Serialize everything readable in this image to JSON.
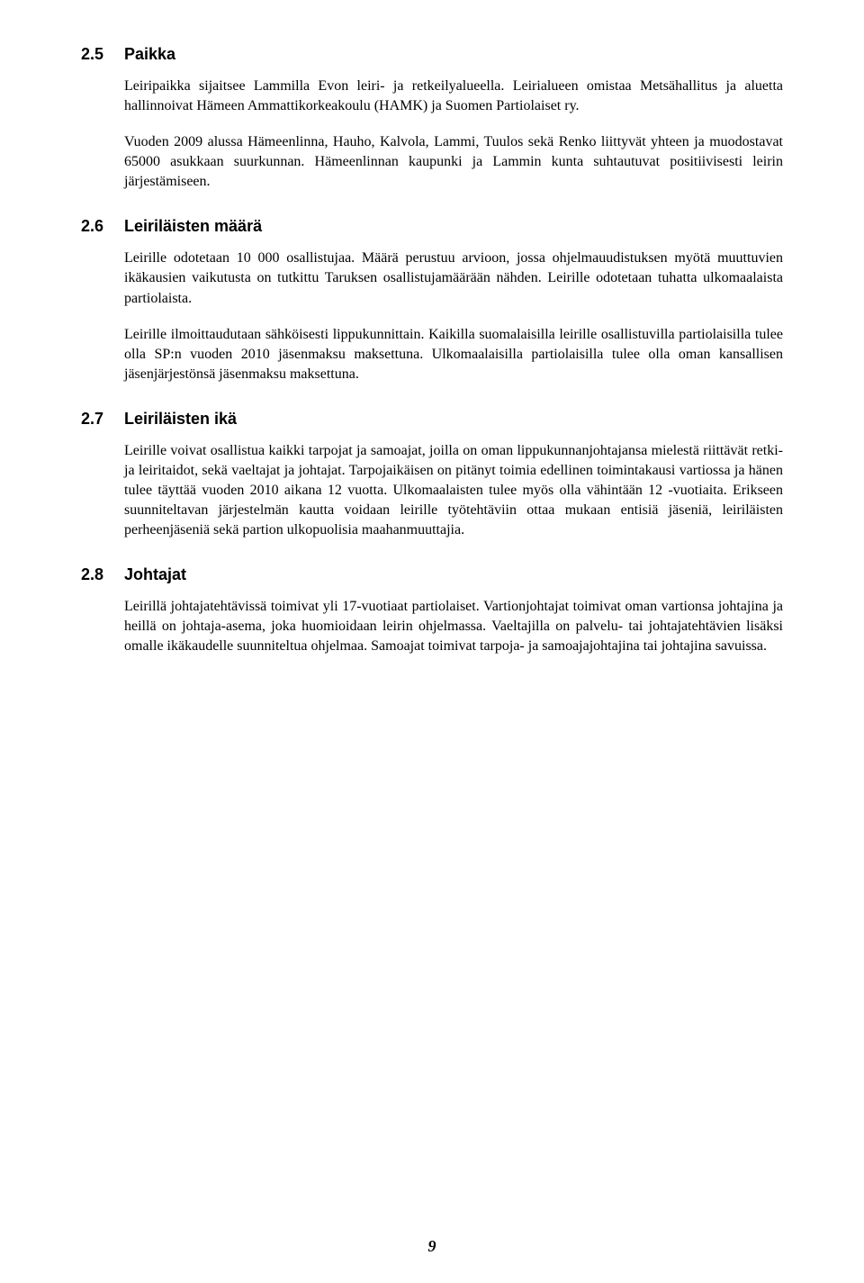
{
  "sections": [
    {
      "number": "2.5",
      "title": "Paikka",
      "paragraphs": [
        "Leiripaikka sijaitsee Lammilla Evon leiri- ja retkeilyalueella. Leirialueen omistaa Metsähallitus ja aluetta hallinnoivat Hämeen Ammattikorkeakoulu (HAMK) ja Suomen Partiolaiset ry.",
        "Vuoden 2009 alussa Hämeenlinna, Hauho, Kalvola, Lammi, Tuulos sekä Renko liittyvät yhteen ja muodostavat 65000 asukkaan suurkunnan. Hämeenlinnan kaupunki ja Lammin kunta suhtautuvat positiivisesti leirin järjestämiseen."
      ]
    },
    {
      "number": "2.6",
      "title": "Leiriläisten määrä",
      "paragraphs": [
        "Leirille odotetaan 10 000 osallistujaa. Määrä perustuu arvioon, jossa ohjelmauudistuksen myötä muuttuvien ikäkausien vaikutusta on tutkittu Taruksen osallistujamäärään nähden. Leirille odotetaan tuhatta ulkomaalaista partiolaista.",
        "Leirille ilmoittaudutaan sähköisesti lippukunnittain. Kaikilla suomalaisilla leirille osallistuvilla partiolaisilla tulee olla SP:n vuoden 2010 jäsenmaksu maksettuna. Ulkomaalaisilla partiolaisilla tulee olla oman kansallisen jäsenjärjestönsä jäsenmaksu maksettuna."
      ]
    },
    {
      "number": "2.7",
      "title": "Leiriläisten ikä",
      "paragraphs": [
        "Leirille voivat osallistua kaikki tarpojat ja samoajat, joilla on oman lippukunnanjohtajansa mielestä riittävät retki- ja leiritaidot, sekä vaeltajat ja johtajat. Tarpojaikäisen on pitänyt toimia edellinen toimintakausi vartiossa ja hänen tulee täyttää vuoden 2010 aikana 12 vuotta. Ulkomaalaisten tulee myös olla vähintään 12 -vuotiaita. Erikseen suunniteltavan järjestelmän kautta voidaan leirille työtehtäviin ottaa mukaan entisiä jäseniä, leiriläisten perheenjäseniä sekä partion ulkopuolisia maahanmuuttajia."
      ]
    },
    {
      "number": "2.8",
      "title": "Johtajat",
      "paragraphs": [
        "Leirillä johtajatehtävissä toimivat yli 17-vuotiaat partiolaiset. Vartionjohtajat toimivat oman vartionsa johtajina ja heillä on johtaja-asema, joka huomioidaan leirin ohjelmassa. Vaeltajilla on palvelu- tai johtajatehtävien lisäksi omalle ikäkaudelle suunniteltua ohjelmaa. Samoajat toimivat tarpoja- ja samoajajohtajina tai johtajina savuissa."
      ]
    }
  ],
  "pageNumber": "9"
}
